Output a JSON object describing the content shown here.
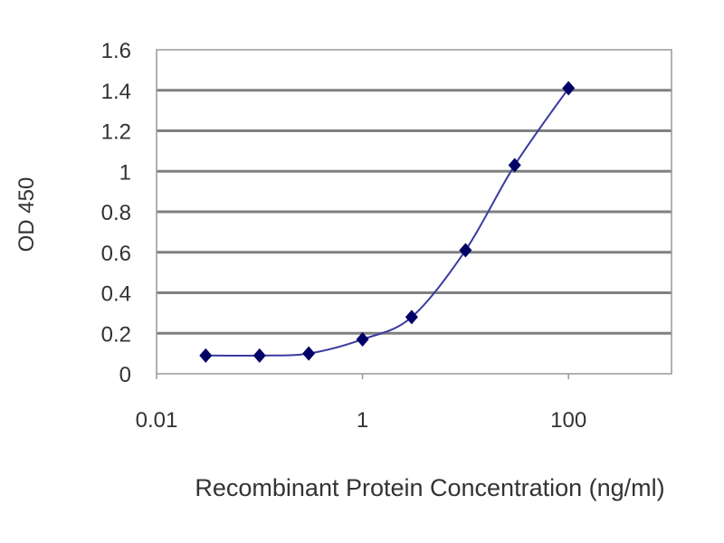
{
  "chart_data": {
    "type": "line",
    "title": "",
    "xlabel": "Recombinant Protein Concentration (ng/ml)",
    "ylabel": "OD 450",
    "x_scale": "log",
    "xlim": [
      0.01,
      1000
    ],
    "ylim": [
      0,
      1.6
    ],
    "x_ticks": [
      0.01,
      1,
      100
    ],
    "x_tick_labels": [
      "0.01",
      "1",
      "100"
    ],
    "y_ticks": [
      0,
      0.2,
      0.4,
      0.6,
      0.8,
      1,
      1.2,
      1.4,
      1.6
    ],
    "y_tick_labels": [
      "0",
      "0.2",
      "0.4",
      "0.6",
      "0.8",
      "1",
      "1.2",
      "1.4",
      "1.6"
    ],
    "grid": "horizontal",
    "legend": "none",
    "series": [
      {
        "x": [
          0.03,
          0.1,
          0.3,
          1,
          3,
          10,
          30,
          100
        ],
        "y": [
          0.09,
          0.09,
          0.1,
          0.17,
          0.28,
          0.61,
          1.03,
          1.41
        ],
        "color": "#000080",
        "marker": "diamond"
      }
    ],
    "colors": {
      "grid": "#808080",
      "line": "#3a3aa0",
      "marker": "#000066"
    }
  }
}
